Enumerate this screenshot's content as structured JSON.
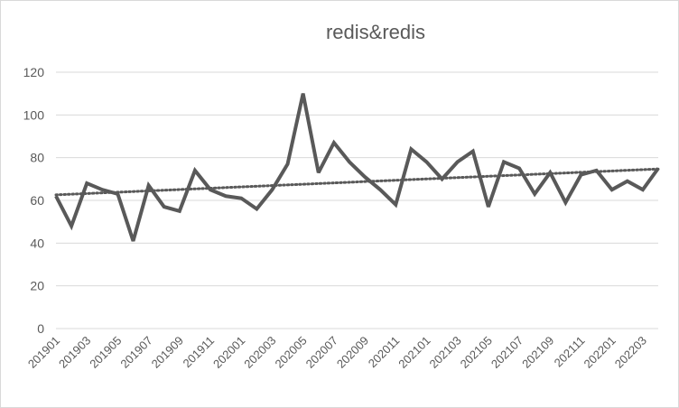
{
  "chart_data": {
    "type": "line",
    "title": "redis&redis",
    "xlabel": "",
    "ylabel": "",
    "ylim": [
      0,
      120
    ],
    "yticks": [
      0,
      20,
      40,
      60,
      80,
      100,
      120
    ],
    "grid": true,
    "legend": "none",
    "categories": [
      "201901",
      "201902",
      "201903",
      "201904",
      "201905",
      "201906",
      "201907",
      "201908",
      "201909",
      "201910",
      "201911",
      "201912",
      "202001",
      "202002",
      "202003",
      "202004",
      "202005",
      "202006",
      "202007",
      "202008",
      "202009",
      "202010",
      "202011",
      "202012",
      "202101",
      "202102",
      "202103",
      "202104",
      "202105",
      "202106",
      "202107",
      "202108",
      "202109",
      "202110",
      "202111",
      "202112",
      "202201",
      "202202",
      "202203",
      "202204"
    ],
    "tick_labels": [
      "201901",
      "201903",
      "201905",
      "201907",
      "201909",
      "201911",
      "202001",
      "202003",
      "202005",
      "202007",
      "202009",
      "202011",
      "202101",
      "202103",
      "202105",
      "202107",
      "202109",
      "202111",
      "202201",
      "202203"
    ],
    "series": [
      {
        "values": [
          62,
          48,
          68,
          65,
          63,
          41,
          67,
          57,
          55,
          74,
          65,
          62,
          61,
          56,
          65,
          77,
          110,
          73,
          87,
          78,
          71,
          65,
          58,
          84,
          78,
          70,
          78,
          83,
          57,
          78,
          75,
          63,
          73,
          59,
          72,
          74,
          65,
          69,
          65,
          75
        ],
        "color": "#595959"
      }
    ],
    "trendline": {
      "style": "dotted",
      "color": "#595959"
    }
  }
}
